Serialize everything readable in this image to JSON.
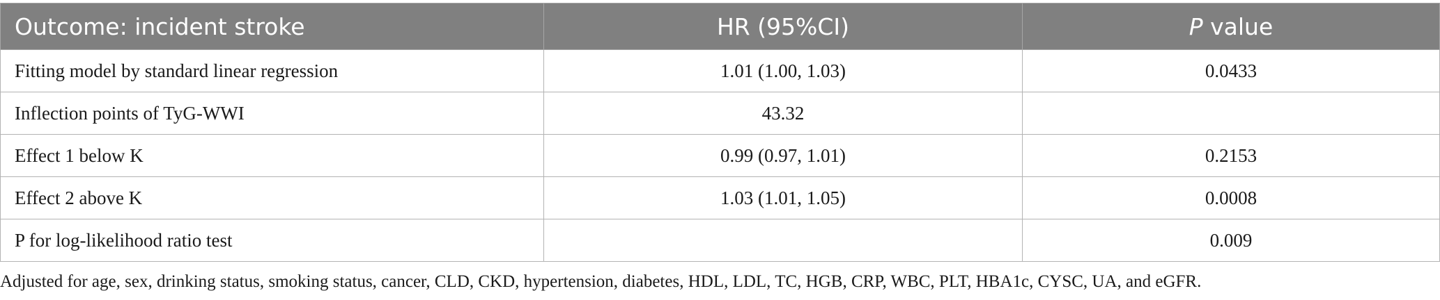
{
  "table": {
    "header": {
      "col1": "Outcome: incident stroke",
      "col2": "HR (95%CI)",
      "col3_italic": "P",
      "col3_rest": " value"
    },
    "rows": [
      {
        "label": "Fitting model by standard linear regression",
        "hr": "1.01 (1.00, 1.03)",
        "p": "0.0433"
      },
      {
        "label": "Inflection points of TyG-WWI",
        "hr": "43.32",
        "p": ""
      },
      {
        "label": "Effect 1 below K",
        "hr": "0.99 (0.97, 1.01)",
        "p": "0.2153"
      },
      {
        "label": "Effect 2 above K",
        "hr": "1.03 (1.01, 1.05)",
        "p": "0.0008"
      },
      {
        "label": "P for log-likelihood ratio test",
        "hr": "",
        "p": "0.009"
      }
    ]
  },
  "footnote": "Adjusted for age, sex, drinking status, smoking status, cancer, CLD, CKD, hypertension, diabetes, HDL, LDL, TC, HGB, CRP, WBC, PLT, HBA1c, CYSC, UA, and eGFR.",
  "colors": {
    "header_bg": "#808080",
    "header_text": "#ffffff",
    "grid": "#b3b3b3"
  }
}
